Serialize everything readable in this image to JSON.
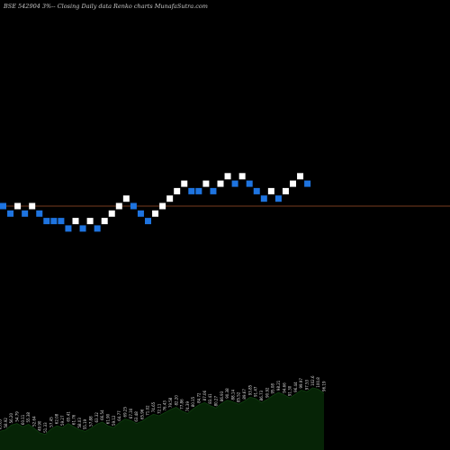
{
  "chart_data": {
    "type": "renko",
    "title": "BSE 542904  3%-- Closing Daily data  Renko  charts MunafaSutra.com",
    "reference_level": 0,
    "ylim": [
      -24,
      24
    ],
    "colors": {
      "up": "#ffffff",
      "down": "#1e74e0",
      "reference_line": "#a0502a",
      "volume_fill": "#062406",
      "volume_line": "#0f400f",
      "background": "#000000"
    },
    "bricks": [
      {
        "i": 0,
        "y": 0,
        "dir": "down"
      },
      {
        "i": 1,
        "y": -1,
        "dir": "down"
      },
      {
        "i": 2,
        "y": 0,
        "dir": "up"
      },
      {
        "i": 3,
        "y": -1,
        "dir": "down"
      },
      {
        "i": 4,
        "y": 0,
        "dir": "up"
      },
      {
        "i": 5,
        "y": -1,
        "dir": "down"
      },
      {
        "i": 6,
        "y": -2,
        "dir": "down"
      },
      {
        "i": 7,
        "y": -2,
        "dir": "down"
      },
      {
        "i": 8,
        "y": -2,
        "dir": "down"
      },
      {
        "i": 9,
        "y": -3,
        "dir": "down"
      },
      {
        "i": 10,
        "y": -2,
        "dir": "up"
      },
      {
        "i": 11,
        "y": -3,
        "dir": "down"
      },
      {
        "i": 12,
        "y": -2,
        "dir": "up"
      },
      {
        "i": 13,
        "y": -3,
        "dir": "down"
      },
      {
        "i": 14,
        "y": -2,
        "dir": "up"
      },
      {
        "i": 15,
        "y": -1,
        "dir": "up"
      },
      {
        "i": 16,
        "y": 0,
        "dir": "up"
      },
      {
        "i": 17,
        "y": 1,
        "dir": "up"
      },
      {
        "i": 18,
        "y": 0,
        "dir": "down"
      },
      {
        "i": 19,
        "y": -1,
        "dir": "down"
      },
      {
        "i": 20,
        "y": -2,
        "dir": "down"
      },
      {
        "i": 21,
        "y": -1,
        "dir": "up"
      },
      {
        "i": 22,
        "y": 0,
        "dir": "up"
      },
      {
        "i": 23,
        "y": 1,
        "dir": "up"
      },
      {
        "i": 24,
        "y": 2,
        "dir": "up"
      },
      {
        "i": 25,
        "y": 3,
        "dir": "up"
      },
      {
        "i": 26,
        "y": 2,
        "dir": "down"
      },
      {
        "i": 27,
        "y": 2,
        "dir": "down"
      },
      {
        "i": 28,
        "y": 3,
        "dir": "up"
      },
      {
        "i": 29,
        "y": 2,
        "dir": "down"
      },
      {
        "i": 30,
        "y": 3,
        "dir": "up"
      },
      {
        "i": 31,
        "y": 4,
        "dir": "up"
      },
      {
        "i": 32,
        "y": 3,
        "dir": "down"
      },
      {
        "i": 33,
        "y": 4,
        "dir": "up"
      },
      {
        "i": 34,
        "y": 3,
        "dir": "down"
      },
      {
        "i": 35,
        "y": 2,
        "dir": "down"
      },
      {
        "i": 36,
        "y": 1,
        "dir": "down"
      },
      {
        "i": 37,
        "y": 2,
        "dir": "up"
      },
      {
        "i": 38,
        "y": 1,
        "dir": "down"
      },
      {
        "i": 39,
        "y": 2,
        "dir": "up"
      },
      {
        "i": 40,
        "y": 3,
        "dir": "up"
      },
      {
        "i": 41,
        "y": 4,
        "dir": "up"
      },
      {
        "i": 42,
        "y": 3,
        "dir": "down"
      }
    ],
    "volume": [
      24,
      26,
      32,
      34,
      30,
      33,
      28,
      22,
      20,
      27,
      31,
      29,
      34,
      30,
      26,
      24,
      28,
      33,
      36,
      31,
      29,
      35,
      40,
      38,
      34,
      37,
      42,
      46,
      44,
      48,
      52,
      55,
      50,
      47,
      53,
      58,
      61,
      57,
      54,
      60,
      64,
      62,
      59,
      63,
      68,
      66,
      61,
      65,
      70,
      74,
      71,
      67,
      72,
      77,
      75,
      80,
      78,
      73
    ],
    "volume_labels": [
      "63.85",
      "58.92",
      "56.20",
      "54.79",
      "60.11",
      "55.38",
      "52.64",
      "49.90",
      "51.33",
      "57.45",
      "62.08",
      "59.27",
      "65.41",
      "61.76",
      "58.03",
      "55.19",
      "57.88",
      "63.32",
      "66.54",
      "61.90",
      "59.12",
      "64.77",
      "69.25",
      "67.30",
      "63.48",
      "65.96",
      "71.02",
      "74.65",
      "72.11",
      "76.43",
      "79.58",
      "82.20",
      "77.86",
      "74.39",
      "80.15",
      "84.72",
      "87.06",
      "83.41",
      "80.27",
      "86.93",
      "90.38",
      "88.14",
      "85.52",
      "89.67",
      "93.85",
      "91.47",
      "86.73",
      "90.92",
      "95.08",
      "98.21",
      "94.66",
      "91.30",
      "96.44",
      "99.97",
      "97.53",
      "102.6",
      "100.8",
      "96.19"
    ]
  }
}
